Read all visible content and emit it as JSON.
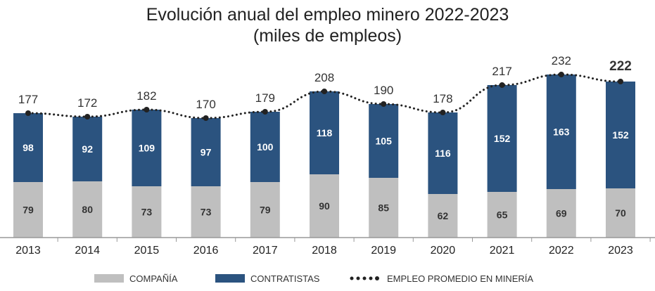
{
  "title": "Evolución anual del empleo minero 2022-2023",
  "subtitle": "(miles de empleos)",
  "colors": {
    "compania": "#bfbfbf",
    "contratistas": "#2b537f",
    "line": "#222222"
  },
  "legend": {
    "compania": "COMPAÑÍA",
    "contratistas": "CONTRATISTAS",
    "promedio": "EMPLEO PROMEDIO EN MINERÍA"
  },
  "chart_data": {
    "type": "bar",
    "stacked": true,
    "categories": [
      "2013",
      "2014",
      "2015",
      "2016",
      "2017",
      "2018",
      "2019",
      "2020",
      "2021",
      "2022",
      "2023"
    ],
    "series": [
      {
        "name": "COMPAÑÍA",
        "values": [
          79,
          80,
          73,
          73,
          79,
          90,
          85,
          62,
          65,
          69,
          70
        ]
      },
      {
        "name": "CONTRATISTAS",
        "values": [
          98,
          92,
          109,
          97,
          100,
          118,
          105,
          116,
          152,
          163,
          152
        ]
      }
    ],
    "line_series": {
      "name": "EMPLEO PROMEDIO EN MINERÍA",
      "values": [
        177,
        172,
        182,
        170,
        179,
        208,
        190,
        178,
        217,
        232,
        222
      ]
    },
    "bold_total_index": 10,
    "legend_position": "bottom",
    "grid": false
  }
}
